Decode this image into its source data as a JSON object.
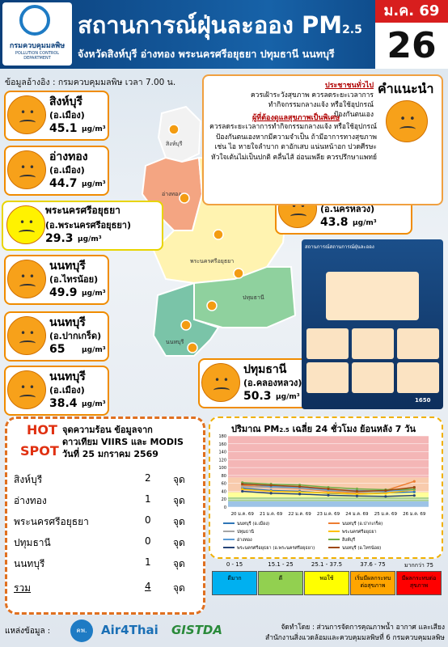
{
  "header": {
    "logo_name": "กรมควบคุมมลพิษ",
    "logo_en": "POLLUTION CONTROL DEPARTMENT",
    "title": "สถานการณ์ฝุ่นละออง PM",
    "title_sub": "2.5",
    "subtitle": "จังหวัดสิงห์บุรี อ่างทอง พระนครศรีอยุธยา ปทุมธานี นนทบุรี",
    "month": "ม.ค. 69",
    "day": "26"
  },
  "source_note": "ข้อมูลอ้างอิง : กรมควบคุมมลพิษ เวลา 7.00 น.",
  "unit": "μg/m³",
  "stations": [
    {
      "name": "สิงห์บุรี",
      "district": "(อ.เมือง)",
      "value": 45.1
    },
    {
      "name": "อ่างทอง",
      "district": "(อ.เมือง)",
      "value": 44.7
    },
    {
      "name": "พระนครศรีอยุธยา",
      "district": "(อ.พระนครศรีอยุธยา)",
      "value": 29.3
    },
    {
      "name": "นนทบุรี",
      "district": "(อ.ไทรน้อย)",
      "value": 49.9
    },
    {
      "name": "นนทบุรี",
      "district": "(อ.ปากเกร็ด)",
      "value": 65.0
    },
    {
      "name": "นนทบุรี",
      "district": "(อ.เมือง)",
      "value": 38.4
    },
    {
      "name": "พระนครศรีอยุธยา",
      "district": "(อ.นครหลวง)",
      "value": 43.8
    },
    {
      "name": "ปทุมธานี",
      "district": "(อ.คลองหลวง)",
      "value": 50.3
    }
  ],
  "map_labels": [
    "สิงห์บุรี",
    "อ่างทอง",
    "พระนครศรีอยุธยา",
    "ปทุมธานี",
    "นนทบุรี"
  ],
  "advice": {
    "title": "คำแนะนำ",
    "general_heading": "ประชาชนทั่วไป",
    "general_text": "ควรเฝ้าระวังสุขภาพ ควรลดระยะเวลาการทำกิจกรรมกลางแจ้ง หรือใช้อุปกรณ์ป้องกันตนเอง",
    "sensitive_heading": "ผู้ที่ต้องดูแลสุขภาพเป็นพิเศษ",
    "sensitive_text": "ควรลดระยะเวลาการทำกิจกรรมกลางแจ้ง หรือใช้อุปกรณ์ป้องกันตนเองหากมีความจำเป็น ถ้ามีอาการทางสุขภาพ เช่น ไอ หายใจลำบาก ตาอักเสบ แน่นหน้าอก ปวดศีรษะ หัวใจเต้นไม่เป็นปกติ คลื่นไส้ อ่อนเพลีย ควรปรึกษาแพทย์"
  },
  "thumbnail": {
    "title": "สถานการณ์สถานการณ์ฝุ่นละออง",
    "hotline": "1650"
  },
  "hotspot": {
    "hot": "HOT",
    "spot": "SPOT",
    "line1": "จุดความร้อน ข้อมูลจาก",
    "line2": "ดาวเทียม VIIRS และ MODIS",
    "line3": "วันที่ 25 มกราคม 2569",
    "unit": "จุด",
    "rows": [
      {
        "province": "สิงห์บุรี",
        "count": 2
      },
      {
        "province": "อ่างทอง",
        "count": 1
      },
      {
        "province": "พระนครศรีอยุธยา",
        "count": 0
      },
      {
        "province": "ปทุมธานี",
        "count": 0
      },
      {
        "province": "นนทบุรี",
        "count": 1
      }
    ],
    "total_label": "รวม",
    "total": 4
  },
  "chart_data": {
    "type": "line",
    "title": "ปริมาณ PM",
    "title_sub": "2.5",
    "title_rest": "เฉลี่ย 24 ชั่วโมง ย้อนหลัง 7 วัน",
    "categories": [
      "20 ม.ค. 69",
      "21 ม.ค. 69",
      "22 ม.ค. 69",
      "23 ม.ค. 69",
      "24 ม.ค. 69",
      "25 ม.ค. 69",
      "26 ม.ค. 69"
    ],
    "ylim": [
      0,
      180
    ],
    "yticks": [
      0,
      20,
      40,
      60,
      80,
      100,
      120,
      140,
      160,
      180
    ],
    "bands": [
      {
        "from": 0,
        "to": 15,
        "color": "#9dc3e6"
      },
      {
        "from": 15,
        "to": 25,
        "color": "#a9d18e"
      },
      {
        "from": 25,
        "to": 37.5,
        "color": "#ffff99"
      },
      {
        "from": 37.5,
        "to": 75,
        "color": "#f8cbad"
      },
      {
        "from": 75,
        "color": "#f4b6b6"
      }
    ],
    "series": [
      {
        "name": "นนทบุรี (อ.เมือง)",
        "color": "#2e75b6",
        "values": [
          48,
          42,
          40,
          35,
          33,
          36,
          38.4
        ]
      },
      {
        "name": "นนทบุรี (อ.ปากเกร็ด)",
        "color": "#ed7d31",
        "values": [
          55,
          50,
          47,
          40,
          36,
          42,
          65.0
        ]
      },
      {
        "name": "ปทุมธานี",
        "color": "#a5a5a5",
        "values": [
          52,
          50,
          48,
          42,
          38,
          40,
          50.3
        ]
      },
      {
        "name": "พระนครศรีอยุธยา",
        "color": "#ffc000",
        "values": [
          45,
          40,
          38,
          36,
          33,
          35,
          43.8
        ]
      },
      {
        "name": "อ่างทอง",
        "color": "#5b9bd5",
        "values": [
          60,
          52,
          50,
          44,
          42,
          40,
          44.7
        ]
      },
      {
        "name": "สิงห์บุรี",
        "color": "#70ad47",
        "values": [
          62,
          58,
          56,
          50,
          46,
          44,
          45.1
        ]
      },
      {
        "name": "พระนครศรีอยุธยา (อ.พระนครศรีอยุธยา)",
        "color": "#264478",
        "values": [
          40,
          35,
          33,
          30,
          28,
          27,
          29.3
        ]
      },
      {
        "name": "นนทบุรี (อ.ไทรน้อย)",
        "color": "#9e480e",
        "values": [
          58,
          55,
          52,
          46,
          40,
          42,
          49.9
        ]
      }
    ]
  },
  "aqi_legend": [
    {
      "range": "0 - 15",
      "level": "ดีมาก",
      "color": "#00b0f0"
    },
    {
      "range": "15.1 - 25",
      "level": "ดี",
      "color": "#92d050"
    },
    {
      "range": "25.1 - 37.5",
      "level": "พอใช้",
      "color": "#ffff00"
    },
    {
      "range": "37.6 - 75",
      "level": "เริ่มมีผลกระทบต่อสุขภาพ",
      "color": "#ffa500"
    },
    {
      "range": "มากกว่า 75",
      "level": "มีผลกระทบต่อสุขภาพ",
      "color": "#ff0000"
    }
  ],
  "footer": {
    "source_label": "แหล่งข้อมูล :",
    "logo1": "คพ.",
    "logo2": "Air4Thai",
    "logo3": "GISTDA",
    "credit1": "จัดทำโดย : ส่วนการจัดการคุณภาพน้ำ อากาศ และเสียง",
    "credit2": "สำนักงานสิ่งแวดล้อมและควบคุมมลพิษที่ 6 กรมควบคุมมลพิษ"
  }
}
